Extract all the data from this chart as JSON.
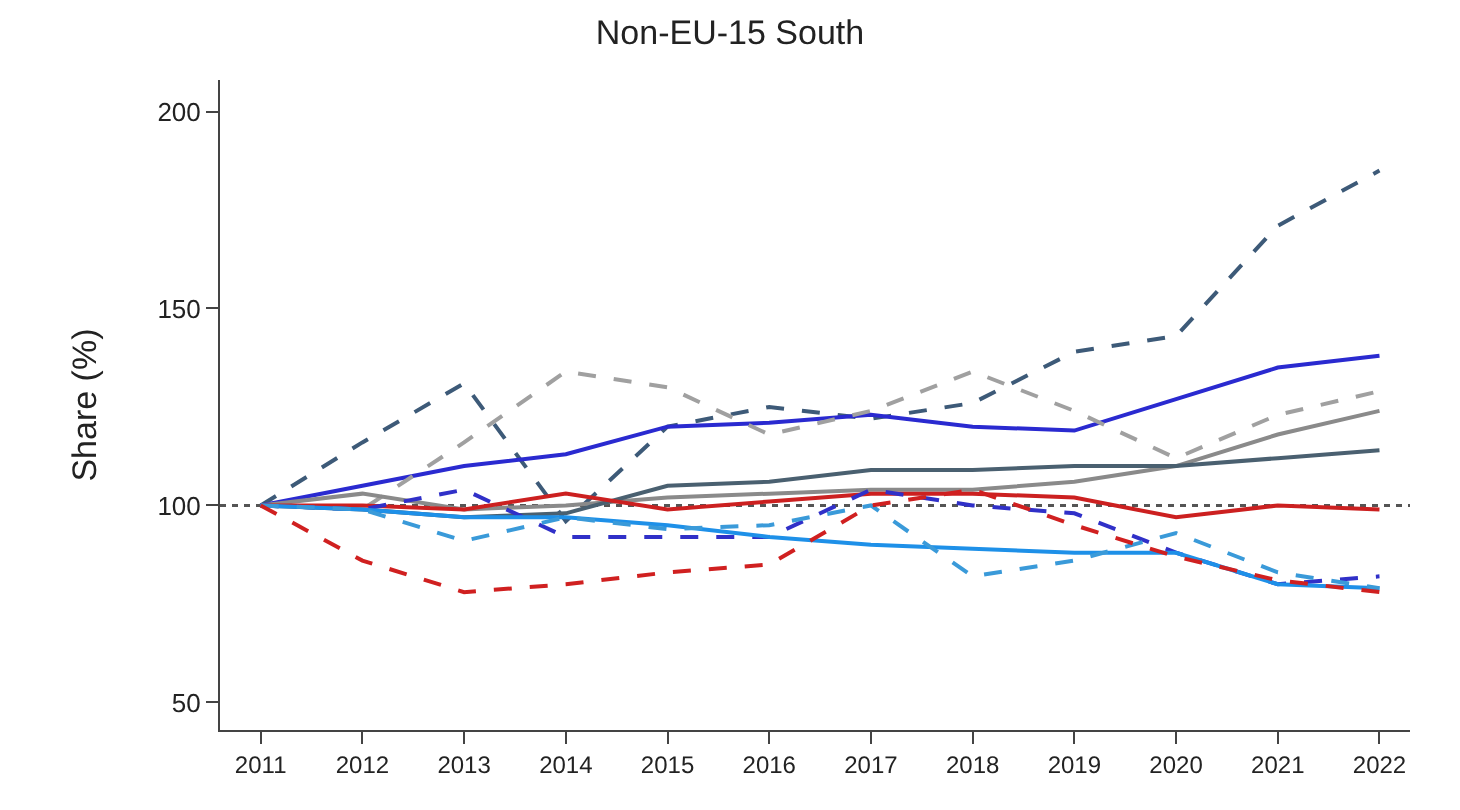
{
  "chart_data": {
    "type": "line",
    "title": "Non-EU-15 South",
    "ylabel": "Share (%)",
    "x": [
      2011,
      2012,
      2013,
      2014,
      2015,
      2016,
      2017,
      2018,
      2019,
      2020,
      2021,
      2022
    ],
    "xlim": [
      2010.6,
      2022.3
    ],
    "xticks": [
      2011,
      2012,
      2013,
      2014,
      2015,
      2016,
      2017,
      2018,
      2019,
      2020,
      2021,
      2022
    ],
    "ylim": [
      43,
      208
    ],
    "yticks": [
      50,
      100,
      150,
      200
    ],
    "grid": false,
    "ref_lines": [
      {
        "axis": "y",
        "value": 100,
        "color": "#555555",
        "line_style": "dotted"
      }
    ],
    "series": [
      {
        "color": "#3d5a78",
        "line_style": "dashed",
        "values": [
          100,
          116,
          131,
          96,
          120,
          125,
          122,
          126,
          139,
          143,
          171,
          185
        ]
      },
      {
        "color": "#2a2ad0",
        "line_style": "solid",
        "values": [
          100,
          105,
          110,
          113,
          120,
          121,
          123,
          120,
          119,
          127,
          135,
          138
        ]
      },
      {
        "color": "#a0a0a0",
        "line_style": "dashed",
        "values": [
          100,
          99,
          116,
          134,
          130,
          118,
          124,
          134,
          124,
          112,
          123,
          129
        ]
      },
      {
        "color": "#8a8a8a",
        "line_style": "solid",
        "values": [
          100,
          103,
          99,
          100,
          102,
          103,
          104,
          104,
          106,
          110,
          118,
          124
        ]
      },
      {
        "color": "#4a6070",
        "line_style": "solid",
        "values": [
          100,
          99,
          97,
          98,
          105,
          106,
          109,
          109,
          110,
          110,
          112,
          114
        ]
      },
      {
        "color": "#cc2020",
        "line_style": "solid",
        "values": [
          100,
          100,
          99,
          103,
          99,
          101,
          103,
          103,
          102,
          97,
          100,
          99
        ]
      },
      {
        "color": "#3030c8",
        "line_style": "dashed",
        "values": [
          100,
          99,
          104,
          92,
          92,
          92,
          104,
          100,
          98,
          88,
          80,
          82
        ]
      },
      {
        "color": "#1e90e8",
        "line_style": "solid",
        "values": [
          100,
          99,
          97,
          97,
          95,
          92,
          90,
          89,
          88,
          88,
          80,
          79
        ]
      },
      {
        "color": "#3a9ad9",
        "line_style": "dashed",
        "values": [
          100,
          99,
          91,
          97,
          94,
          95,
          100,
          82,
          86,
          93,
          83,
          79
        ]
      },
      {
        "color": "#d02020",
        "line_style": "dashed",
        "values": [
          100,
          86,
          78,
          80,
          83,
          85,
          100,
          104,
          95,
          87,
          81,
          78
        ]
      }
    ]
  }
}
